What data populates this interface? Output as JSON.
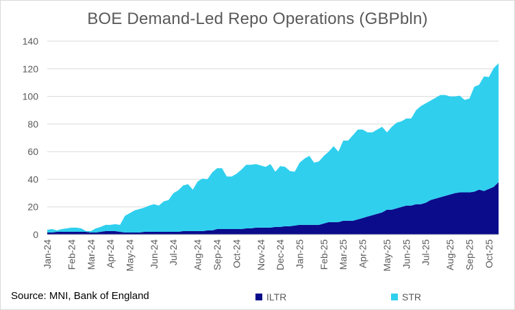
{
  "chart_data": {
    "type": "area",
    "stacked": true,
    "title": "BOE Demand-Led Repo Operations (GBPbln)",
    "xlabel": "",
    "ylabel": "",
    "ylim": [
      0,
      140
    ],
    "yticks": [
      0,
      20,
      40,
      60,
      80,
      100,
      120,
      140
    ],
    "grid": true,
    "legend_position": "bottom",
    "x_tick_labels": [
      "Jan-24",
      "Feb-24",
      "Mar-24",
      "Apr-24",
      "May-24",
      "Jun-24",
      "Jul-24",
      "Aug-24",
      "Sep-24",
      "Oct-24",
      "Nov-24",
      "Dec-24",
      "Jan-25",
      "Feb-25",
      "Mar-25",
      "Apr-25",
      "May-25",
      "Jun-25",
      "Jul-25",
      "Aug-25",
      "Sep-25",
      "Oct-25"
    ],
    "x": [
      "2024-01-03",
      "2024-01-10",
      "2024-01-17",
      "2024-01-24",
      "2024-01-31",
      "2024-02-07",
      "2024-02-14",
      "2024-02-21",
      "2024-02-28",
      "2024-03-06",
      "2024-03-13",
      "2024-03-20",
      "2024-03-27",
      "2024-04-03",
      "2024-04-10",
      "2024-04-17",
      "2024-04-24",
      "2024-05-01",
      "2024-05-08",
      "2024-05-15",
      "2024-05-22",
      "2024-05-29",
      "2024-06-05",
      "2024-06-12",
      "2024-06-19",
      "2024-06-26",
      "2024-07-03",
      "2024-07-10",
      "2024-07-17",
      "2024-07-24",
      "2024-07-31",
      "2024-08-07",
      "2024-08-14",
      "2024-08-21",
      "2024-08-28",
      "2024-09-04",
      "2024-09-11",
      "2024-09-18",
      "2024-09-25",
      "2024-10-02",
      "2024-10-09",
      "2024-10-16",
      "2024-10-23",
      "2024-10-30",
      "2024-11-06",
      "2024-11-13",
      "2024-11-20",
      "2024-11-27",
      "2024-12-04",
      "2024-12-11",
      "2024-12-18",
      "2024-12-25",
      "2025-01-01",
      "2025-01-08",
      "2025-01-15",
      "2025-01-22",
      "2025-01-29",
      "2025-02-05",
      "2025-02-12",
      "2025-02-19",
      "2025-02-26",
      "2025-03-05",
      "2025-03-12",
      "2025-03-19",
      "2025-03-26",
      "2025-04-02",
      "2025-04-09",
      "2025-04-16",
      "2025-04-23",
      "2025-04-30",
      "2025-05-07",
      "2025-05-14",
      "2025-05-21",
      "2025-05-28",
      "2025-06-04",
      "2025-06-11",
      "2025-06-18",
      "2025-06-25",
      "2025-07-02",
      "2025-07-09",
      "2025-07-16",
      "2025-07-23",
      "2025-07-30",
      "2025-08-06",
      "2025-08-13",
      "2025-08-20",
      "2025-08-27",
      "2025-09-03",
      "2025-09-10",
      "2025-09-17",
      "2025-09-24",
      "2025-10-01",
      "2025-10-08",
      "2025-10-15"
    ],
    "series": [
      {
        "name": "ILTR",
        "color": "#0b0c8c",
        "values": [
          1.5,
          1.5,
          2.0,
          2.0,
          2.0,
          2.0,
          2.0,
          2.0,
          2.0,
          1.5,
          1.5,
          2.0,
          2.5,
          2.5,
          2.5,
          2.0,
          1.5,
          1.5,
          1.5,
          1.5,
          2.0,
          2.0,
          2.0,
          2.0,
          2.0,
          2.0,
          2.0,
          2.0,
          2.5,
          2.5,
          2.5,
          2.5,
          2.5,
          3.0,
          3.0,
          4.0,
          4.0,
          4.0,
          4.0,
          4.0,
          4.0,
          4.5,
          4.5,
          5.0,
          5.0,
          5.0,
          5.0,
          5.5,
          5.5,
          6.0,
          6.0,
          6.5,
          7.0,
          7.0,
          7.0,
          7.0,
          7.0,
          8.0,
          9.0,
          9.0,
          9.0,
          10.0,
          10.0,
          10.0,
          11.0,
          12.0,
          13.0,
          14.0,
          15.0,
          16.0,
          18.0,
          18.0,
          19.0,
          20.0,
          21.0,
          21.0,
          22.0,
          22.0,
          23.0,
          25.0,
          26.0,
          27.0,
          28.0,
          29.0,
          30.0,
          30.5,
          30.5,
          30.5,
          31.0,
          32.5,
          31.5,
          33.0,
          34.5,
          38.0
        ]
      },
      {
        "name": "STR",
        "color": "#30cfee",
        "values": [
          2.0,
          2.5,
          1.0,
          2.0,
          2.5,
          3.0,
          3.0,
          2.5,
          0.5,
          1.0,
          3.0,
          3.5,
          4.5,
          4.5,
          5.0,
          5.0,
          12.0,
          14.0,
          16.0,
          17.0,
          17.5,
          19.0,
          20.0,
          19.0,
          22.0,
          23.0,
          28.0,
          30.0,
          33.0,
          34.0,
          30.0,
          36.0,
          38.0,
          37.0,
          42.0,
          44.0,
          44.0,
          38.0,
          38.0,
          40.0,
          43.0,
          46.0,
          46.0,
          46.0,
          45.0,
          44.0,
          46.0,
          40.0,
          44.0,
          43.0,
          40.0,
          39.0,
          45.0,
          48.0,
          50.0,
          45.0,
          46.0,
          49.0,
          51.0,
          55.0,
          51.0,
          58.0,
          58.0,
          62.0,
          65.0,
          64.0,
          61.0,
          60.0,
          61.0,
          62.0,
          56.0,
          60.0,
          62.0,
          62.0,
          63.0,
          63.0,
          68.0,
          71.0,
          72.0,
          72.0,
          73.0,
          74.0,
          73.0,
          71.0,
          70.0,
          70.0,
          67.0,
          68.0,
          76.0,
          76.0,
          83.0,
          81.0,
          86.0,
          86.0
        ]
      }
    ]
  },
  "footer": {
    "source": "Source: MNI, Bank of England"
  }
}
